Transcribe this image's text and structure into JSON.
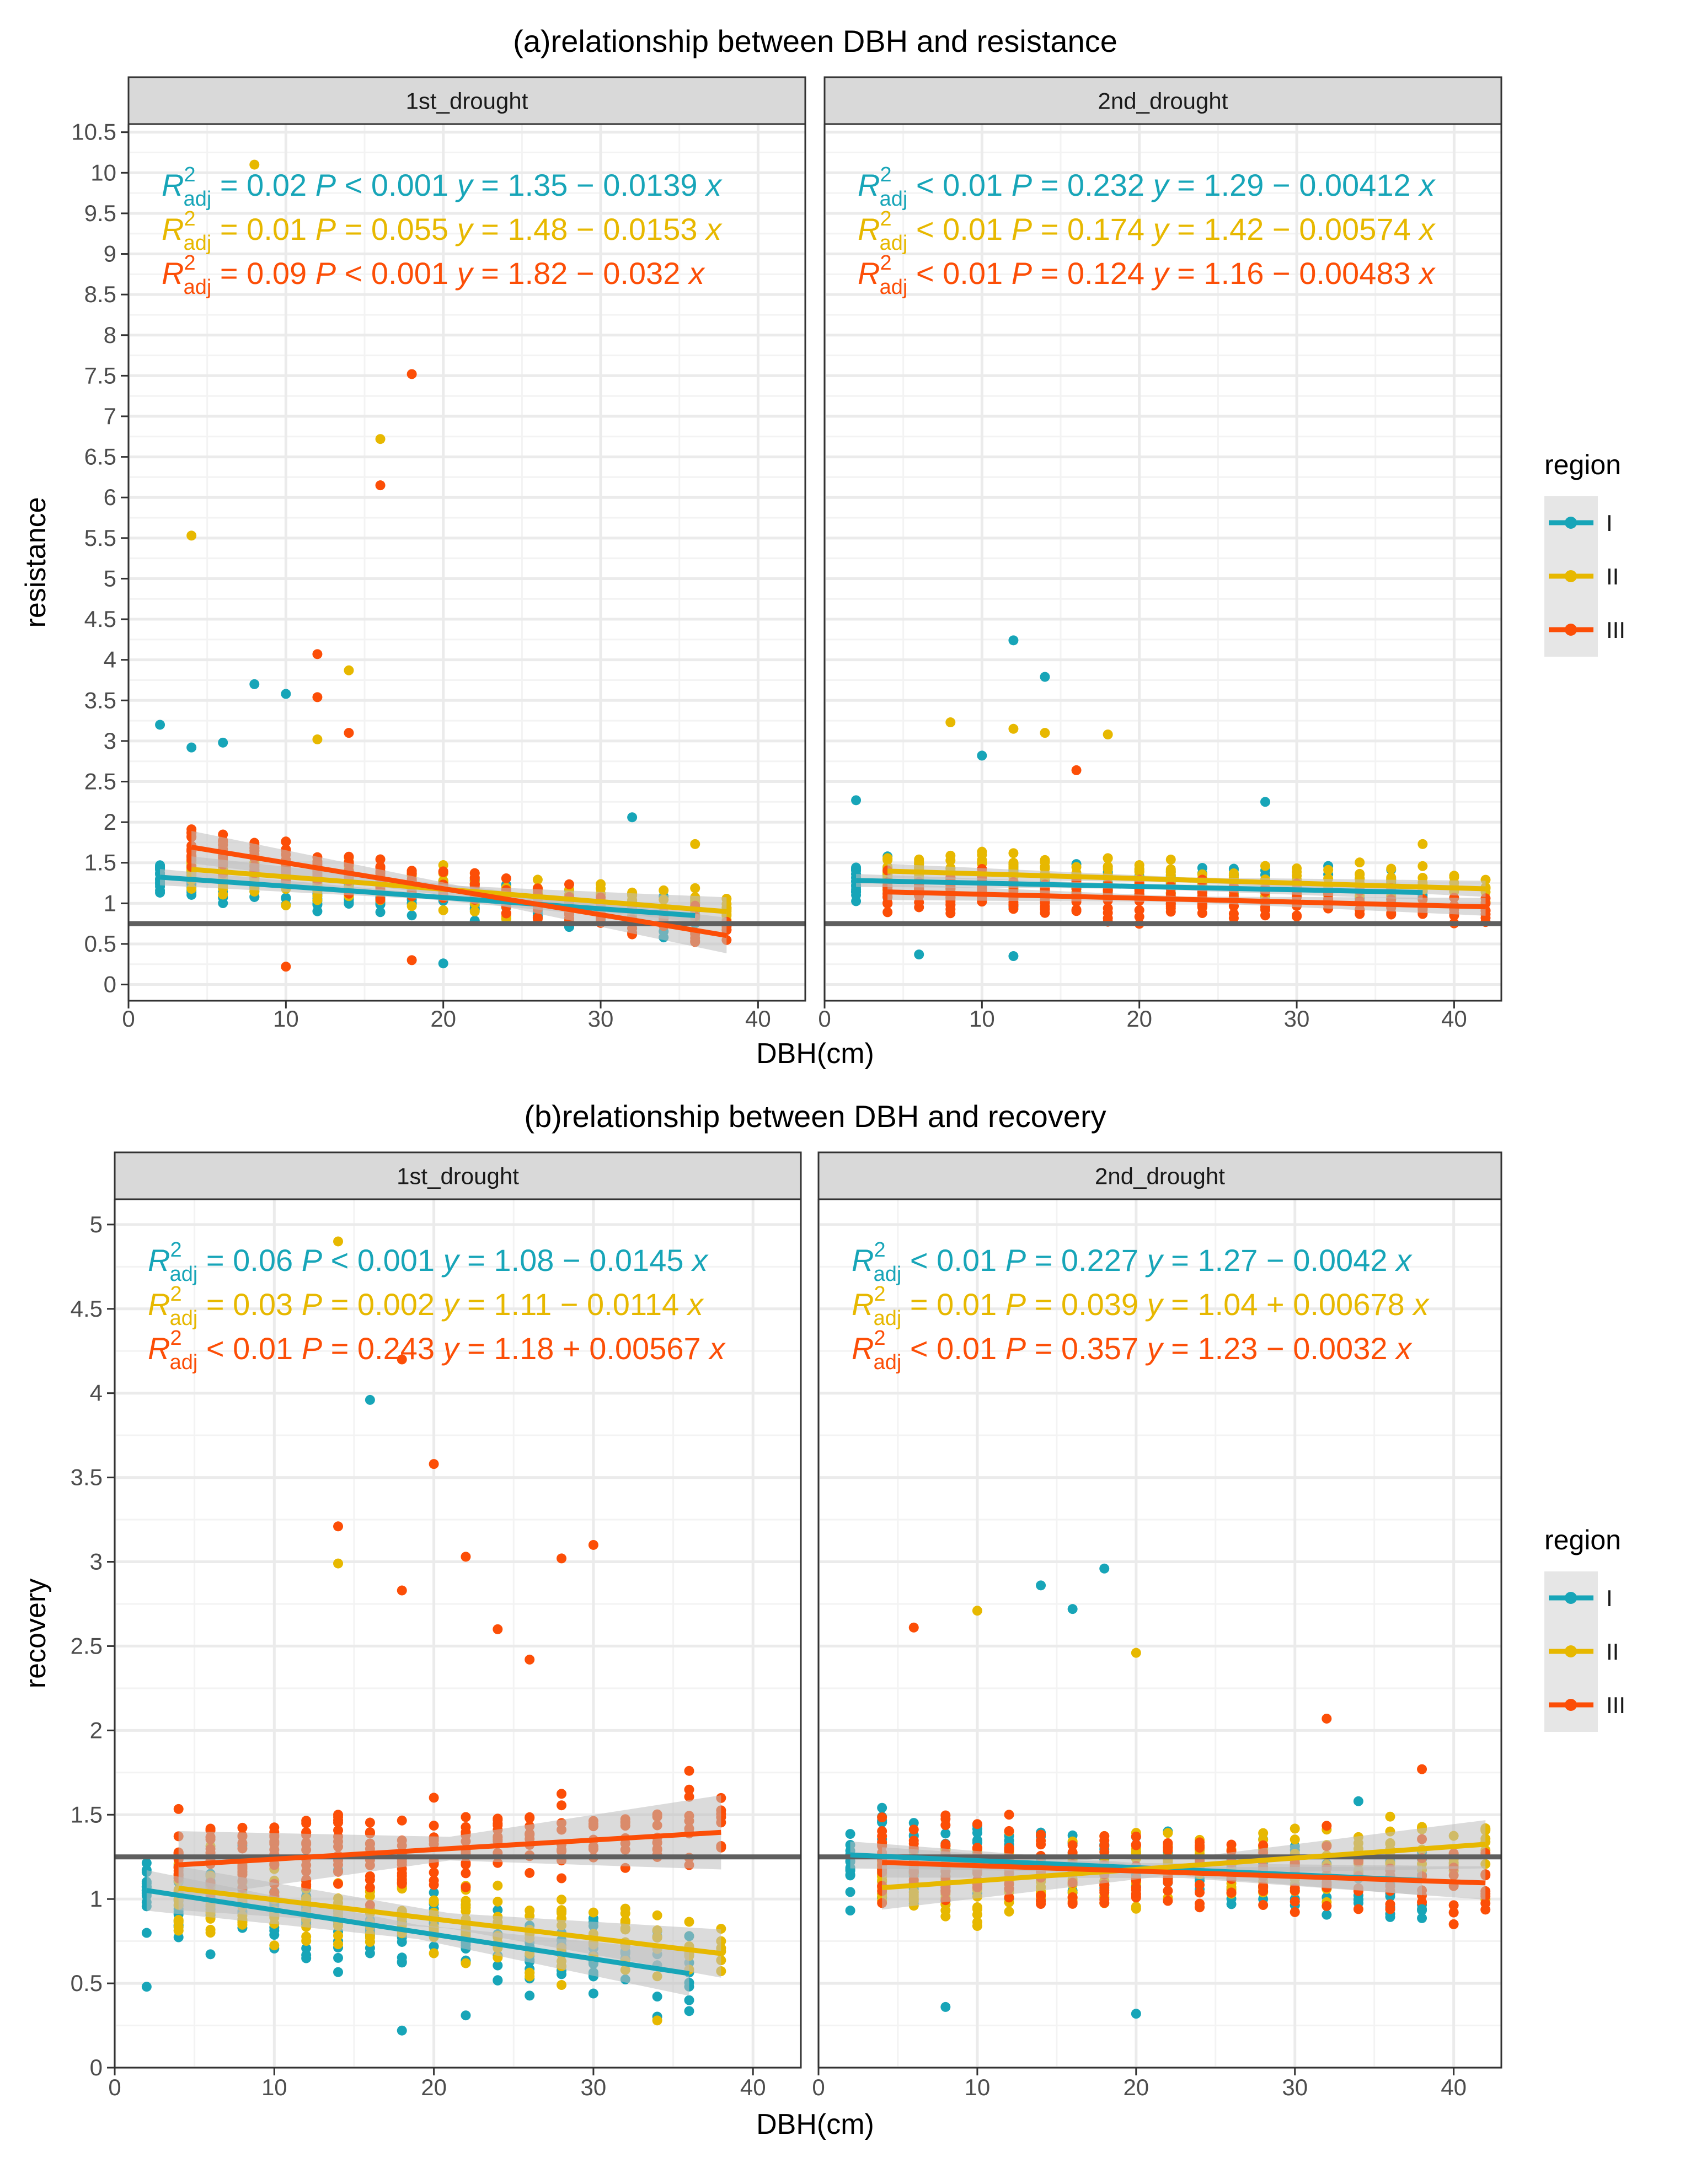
{
  "colors": {
    "I": "#17a5b8",
    "II": "#e7b800",
    "III": "#fc4e07",
    "strip_bg": "#d9d9d9",
    "reference_line": "#5f5f5f",
    "ci_band": "#bdbdbd",
    "grid": "#ebebeb"
  },
  "legend": {
    "title": "region",
    "items": [
      "I",
      "II",
      "III"
    ]
  },
  "stat_symbols": {
    "r": "R",
    "sup": "2",
    "sub": "adj",
    "p": "P",
    "y": "y",
    "x": "x"
  },
  "chart_data": [
    {
      "type": "scatter",
      "id": "resistance",
      "title": "(a)relationship between DBH and resistance",
      "xlabel": "DBH(cm)",
      "ylabel": "resistance",
      "xlim": [
        0,
        43
      ],
      "ylim": [
        -0.2,
        10.6
      ],
      "x_ticks": [
        0,
        10,
        20,
        30,
        40
      ],
      "y_ticks": [
        0,
        0.5,
        1,
        1.5,
        2,
        2.5,
        3,
        3.5,
        4,
        4.5,
        5,
        5.5,
        6,
        6.5,
        7,
        7.5,
        8,
        8.5,
        9,
        9.5,
        10,
        10.5
      ],
      "reference_line": 0.75,
      "legend_position": "right",
      "panels": [
        {
          "strip": "1st_drought",
          "fits": [
            {
              "region": "I",
              "intercept": 1.35,
              "slope": -0.0139,
              "x_range": [
                2,
                36
              ],
              "ci": 0.1
            },
            {
              "region": "II",
              "intercept": 1.48,
              "slope": -0.0153,
              "x_range": [
                4,
                38
              ],
              "ci": 0.16
            },
            {
              "region": "III",
              "intercept": 1.82,
              "slope": -0.032,
              "x_range": [
                4,
                38
              ],
              "ci": 0.2
            }
          ],
          "stats": [
            {
              "region": "I",
              "r2": "= 0.02",
              "p": "< 0.001",
              "eq": "= 1.35 − 0.0139"
            },
            {
              "region": "II",
              "r2": "= 0.01",
              "p": "= 0.055",
              "eq": "= 1.48 − 0.0153"
            },
            {
              "region": "III",
              "r2": "= 0.09",
              "p": "< 0.001",
              "eq": "= 1.82 − 0.032"
            }
          ],
          "outliers": [
            {
              "region": "II",
              "x": 4,
              "y": 5.53
            },
            {
              "region": "II",
              "x": 8,
              "y": 10.1
            },
            {
              "region": "II",
              "x": 16,
              "y": 6.72
            },
            {
              "region": "III",
              "x": 16,
              "y": 6.15
            },
            {
              "region": "III",
              "x": 18,
              "y": 7.52
            },
            {
              "region": "III",
              "x": 12,
              "y": 4.07
            },
            {
              "region": "II",
              "x": 14,
              "y": 3.87
            },
            {
              "region": "I",
              "x": 8,
              "y": 3.7
            },
            {
              "region": "I",
              "x": 10,
              "y": 3.58
            },
            {
              "region": "III",
              "x": 12,
              "y": 3.54
            },
            {
              "region": "I",
              "x": 2,
              "y": 3.2
            },
            {
              "region": "I",
              "x": 4,
              "y": 2.92
            },
            {
              "region": "I",
              "x": 6,
              "y": 2.98
            },
            {
              "region": "II",
              "x": 12,
              "y": 3.02
            },
            {
              "region": "III",
              "x": 14,
              "y": 3.1
            },
            {
              "region": "I",
              "x": 32,
              "y": 2.06
            },
            {
              "region": "II",
              "x": 36,
              "y": 1.73
            },
            {
              "region": "III",
              "x": 10,
              "y": 0.22
            },
            {
              "region": "I",
              "x": 20,
              "y": 0.26
            },
            {
              "region": "III",
              "x": 18,
              "y": 0.3
            }
          ]
        },
        {
          "strip": "2nd_drought",
          "fits": [
            {
              "region": "I",
              "intercept": 1.29,
              "slope": -0.00412,
              "x_range": [
                2,
                38
              ],
              "ci": 0.08
            },
            {
              "region": "II",
              "intercept": 1.42,
              "slope": -0.00574,
              "x_range": [
                4,
                42
              ],
              "ci": 0.09
            },
            {
              "region": "III",
              "intercept": 1.16,
              "slope": -0.00483,
              "x_range": [
                4,
                42
              ],
              "ci": 0.1
            }
          ],
          "stats": [
            {
              "region": "I",
              "r2": "< 0.01",
              "p": "= 0.232",
              "eq": "= 1.29 − 0.00412"
            },
            {
              "region": "II",
              "r2": "< 0.01",
              "p": "= 0.174",
              "eq": "= 1.42 − 0.00574"
            },
            {
              "region": "III",
              "r2": "< 0.01",
              "p": "= 0.124",
              "eq": "= 1.16 − 0.00483"
            }
          ],
          "outliers": [
            {
              "region": "I",
              "x": 12,
              "y": 4.24
            },
            {
              "region": "I",
              "x": 14,
              "y": 3.79
            },
            {
              "region": "II",
              "x": 8,
              "y": 3.23
            },
            {
              "region": "II",
              "x": 12,
              "y": 3.15
            },
            {
              "region": "II",
              "x": 14,
              "y": 3.1
            },
            {
              "region": "II",
              "x": 18,
              "y": 3.08
            },
            {
              "region": "I",
              "x": 10,
              "y": 2.82
            },
            {
              "region": "I",
              "x": 2,
              "y": 2.27
            },
            {
              "region": "I",
              "x": 28,
              "y": 2.25
            },
            {
              "region": "III",
              "x": 16,
              "y": 2.64
            },
            {
              "region": "II",
              "x": 38,
              "y": 1.73
            },
            {
              "region": "I",
              "x": 6,
              "y": 0.37
            },
            {
              "region": "I",
              "x": 12,
              "y": 0.35
            },
            {
              "region": "III",
              "x": 42,
              "y": 0.77
            }
          ]
        }
      ]
    },
    {
      "type": "scatter",
      "id": "recovery",
      "title": "(b)relationship between DBH and recovery",
      "xlabel": "DBH(cm)",
      "ylabel": "recovery",
      "xlim": [
        0,
        43
      ],
      "ylim": [
        0,
        5.15
      ],
      "x_ticks": [
        0,
        10,
        20,
        30,
        40
      ],
      "y_ticks": [
        0,
        0.5,
        1,
        1.5,
        2,
        2.5,
        3,
        3.5,
        4,
        4.5,
        5
      ],
      "reference_line": 1.25,
      "legend_position": "right",
      "panels": [
        {
          "strip": "1st_drought",
          "fits": [
            {
              "region": "I",
              "intercept": 1.08,
              "slope": -0.0145,
              "x_range": [
                2,
                36
              ],
              "ci": 0.12
            },
            {
              "region": "II",
              "intercept": 1.11,
              "slope": -0.0114,
              "x_range": [
                4,
                38
              ],
              "ci": 0.13
            },
            {
              "region": "III",
              "intercept": 1.18,
              "slope": 0.00567,
              "x_range": [
                4,
                38
              ],
              "ci": 0.2
            }
          ],
          "stats": [
            {
              "region": "I",
              "r2": "= 0.06",
              "p": "< 0.001",
              "eq": "= 1.08 − 0.0145"
            },
            {
              "region": "II",
              "r2": "= 0.03",
              "p": "= 0.002",
              "eq": "= 1.11 − 0.0114"
            },
            {
              "region": "III",
              "r2": "< 0.01",
              "p": "= 0.243",
              "eq": "= 1.18 + 0.00567"
            }
          ],
          "outliers": [
            {
              "region": "II",
              "x": 14,
              "y": 4.9
            },
            {
              "region": "III",
              "x": 18,
              "y": 4.2
            },
            {
              "region": "I",
              "x": 16,
              "y": 3.96
            },
            {
              "region": "III",
              "x": 20,
              "y": 3.58
            },
            {
              "region": "III",
              "x": 14,
              "y": 3.21
            },
            {
              "region": "III",
              "x": 30,
              "y": 3.1
            },
            {
              "region": "III",
              "x": 22,
              "y": 3.03
            },
            {
              "region": "III",
              "x": 28,
              "y": 3.02
            },
            {
              "region": "II",
              "x": 14,
              "y": 2.99
            },
            {
              "region": "III",
              "x": 18,
              "y": 2.83
            },
            {
              "region": "III",
              "x": 24,
              "y": 2.6
            },
            {
              "region": "III",
              "x": 26,
              "y": 2.42
            },
            {
              "region": "II",
              "x": 34,
              "y": 0.28
            },
            {
              "region": "I",
              "x": 18,
              "y": 0.22
            },
            {
              "region": "I",
              "x": 22,
              "y": 0.31
            },
            {
              "region": "I",
              "x": 2,
              "y": 0.48
            },
            {
              "region": "I",
              "x": 36,
              "y": 0.78
            },
            {
              "region": "III",
              "x": 36,
              "y": 1.76
            }
          ]
        },
        {
          "strip": "2nd_drought",
          "fits": [
            {
              "region": "I",
              "intercept": 1.27,
              "slope": -0.0042,
              "x_range": [
                2,
                38
              ],
              "ci": 0.08
            },
            {
              "region": "II",
              "intercept": 1.04,
              "slope": 0.00678,
              "x_range": [
                4,
                42
              ],
              "ci": 0.13
            },
            {
              "region": "III",
              "intercept": 1.23,
              "slope": -0.0032,
              "x_range": [
                4,
                42
              ],
              "ci": 0.09
            }
          ],
          "stats": [
            {
              "region": "I",
              "r2": "< 0.01",
              "p": "= 0.227",
              "eq": "= 1.27 − 0.0042"
            },
            {
              "region": "II",
              "r2": "= 0.01",
              "p": "= 0.039",
              "eq": "= 1.04 + 0.00678"
            },
            {
              "region": "III",
              "r2": "< 0.01",
              "p": "= 0.357",
              "eq": "= 1.23 − 0.0032"
            }
          ],
          "outliers": [
            {
              "region": "I",
              "x": 18,
              "y": 2.96
            },
            {
              "region": "I",
              "x": 14,
              "y": 2.86
            },
            {
              "region": "I",
              "x": 16,
              "y": 2.72
            },
            {
              "region": "II",
              "x": 10,
              "y": 2.71
            },
            {
              "region": "III",
              "x": 6,
              "y": 2.61
            },
            {
              "region": "II",
              "x": 20,
              "y": 2.46
            },
            {
              "region": "I",
              "x": 20,
              "y": 0.32
            },
            {
              "region": "I",
              "x": 8,
              "y": 0.36
            },
            {
              "region": "I",
              "x": 38,
              "y": 0.94
            },
            {
              "region": "III",
              "x": 32,
              "y": 2.07
            },
            {
              "region": "III",
              "x": 38,
              "y": 1.77
            },
            {
              "region": "I",
              "x": 34,
              "y": 1.58
            }
          ]
        }
      ]
    }
  ]
}
